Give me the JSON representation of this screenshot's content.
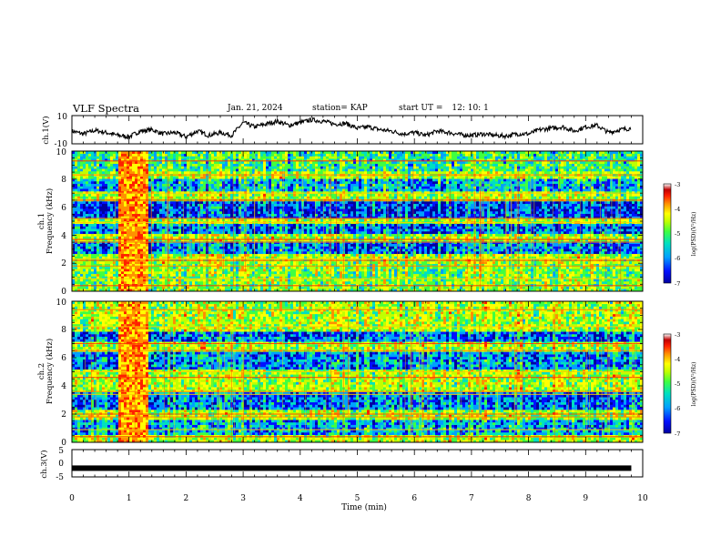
{
  "header": {
    "title": "VLF Spectra",
    "date": "Jan. 21, 2024",
    "station": "station= KAP",
    "start_label": "start UT =",
    "start_value": "12: 10: 1"
  },
  "chart_data": [
    {
      "type": "line",
      "panel": "ch1-waveform",
      "ylabel": "ch.1(V)",
      "ylim": [
        -10,
        10
      ],
      "yticks": [
        "10",
        "-10"
      ],
      "x": [
        0,
        0.2,
        0.4,
        0.6,
        0.8,
        1.0,
        1.2,
        1.4,
        1.6,
        1.8,
        2.0,
        2.2,
        2.4,
        2.6,
        2.8,
        3.0,
        3.2,
        3.4,
        3.6,
        3.8,
        4.0,
        4.2,
        4.4,
        4.6,
        4.8,
        5.0,
        5.2,
        5.4,
        5.6,
        5.8,
        6.0,
        6.2,
        6.4,
        6.6,
        6.8,
        7.0,
        7.2,
        7.4,
        7.6,
        7.8,
        8.0,
        8.2,
        8.4,
        8.6,
        8.8,
        9.0,
        9.2,
        9.4,
        9.6,
        9.8
      ],
      "values": [
        -1,
        -3,
        -0.5,
        -2,
        -4,
        -5,
        -1,
        0,
        -3,
        -2,
        -5,
        -1,
        -4,
        -2,
        -4,
        5,
        2,
        4,
        6,
        3,
        5,
        7,
        6,
        4,
        4.5,
        1,
        2,
        0,
        -1,
        -3,
        -2,
        -4,
        -1,
        -2,
        -3.5,
        -4,
        -3,
        -4,
        -4.5,
        -3,
        -3,
        0,
        1,
        2,
        -1,
        2,
        3,
        -2,
        0,
        1
      ]
    },
    {
      "type": "heatmap",
      "panel": "ch1-spectrogram",
      "ylabel": "ch.1",
      "ylabel2": "Frequency (kHz)",
      "ylim": [
        0,
        10
      ],
      "yticks": [
        "0",
        "2",
        "4",
        "6",
        "8",
        "10"
      ],
      "colorbar": {
        "label": "log(PSD)(V²/Hz)",
        "range": [
          -7,
          -3
        ],
        "ticks": [
          "-3",
          "-4",
          "-5",
          "-6",
          "-7"
        ]
      }
    },
    {
      "type": "heatmap",
      "panel": "ch2-spectrogram",
      "ylabel": "ch.2",
      "ylabel2": "Frequency (kHz)",
      "ylim": [
        0,
        10
      ],
      "yticks": [
        "0",
        "2",
        "4",
        "6",
        "8",
        "10"
      ],
      "colorbar": {
        "label": "log(PSD)(V²/Hz)",
        "range": [
          -7,
          -3
        ],
        "ticks": [
          "-3",
          "-4",
          "-5",
          "-6",
          "-7"
        ]
      }
    },
    {
      "type": "line",
      "panel": "ch3-waveform",
      "ylabel": "ch.3(V)",
      "ylim": [
        -5,
        5
      ],
      "yticks": [
        "5",
        "0",
        "-5"
      ],
      "x": [
        0,
        9.8
      ],
      "values": [
        -1.8,
        -1.8
      ]
    }
  ],
  "xaxis": {
    "label": "Time (min)",
    "ticks": [
      "0",
      "1",
      "2",
      "3",
      "4",
      "5",
      "6",
      "7",
      "8",
      "9",
      "10"
    ]
  },
  "colors": {
    "colormap": [
      "#0000a0",
      "#0010ff",
      "#00a0ff",
      "#00e0c0",
      "#40ff40",
      "#c0ff00",
      "#ffff00",
      "#ff9000",
      "#ff2000",
      "#c00000",
      "#ffffff"
    ]
  }
}
